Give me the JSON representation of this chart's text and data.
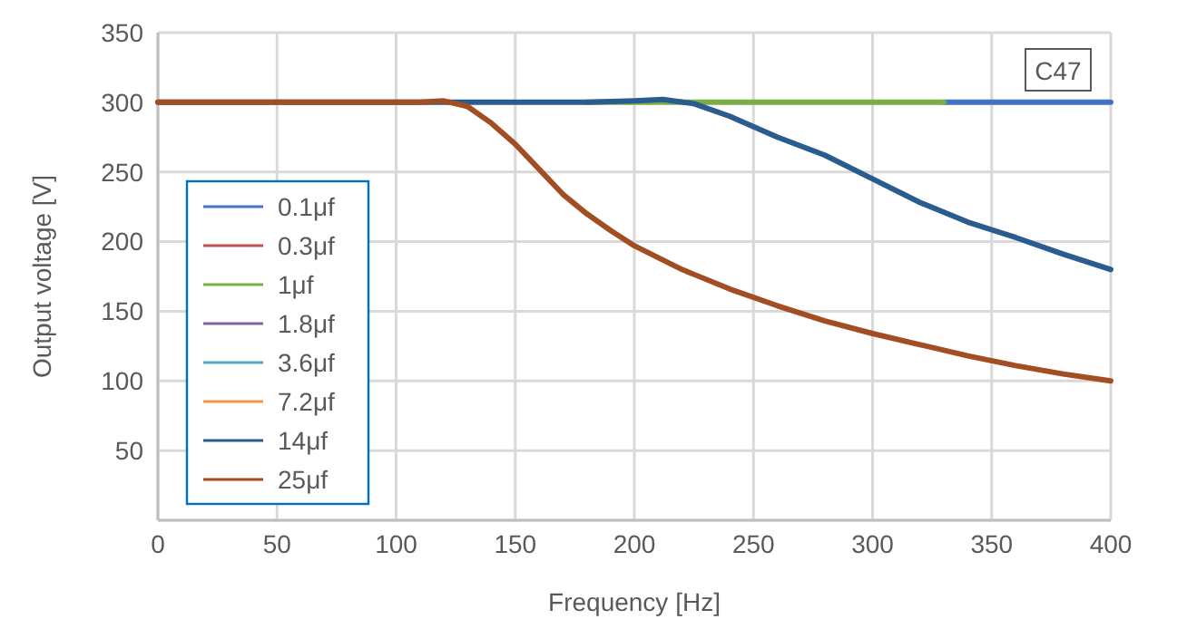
{
  "chart_data": {
    "type": "line",
    "xlabel": "Frequency [Hz]",
    "ylabel": "Output voltage [V]",
    "xlim": [
      0,
      400
    ],
    "xticks": [
      0,
      50,
      100,
      150,
      200,
      250,
      300,
      350,
      400
    ],
    "ylim": [
      0,
      350
    ],
    "yticks": [
      {
        "value": 0,
        "label": null
      },
      50,
      100,
      150,
      200,
      250,
      300,
      350
    ],
    "grid": true,
    "legend": "left",
    "marker": "none",
    "line_style": "solid",
    "annotations": [
      "C47"
    ],
    "series": [
      {
        "name": "0.1μf",
        "color": "#4472c4",
        "x": [
          330,
          400
        ],
        "values": [
          300,
          300
        ]
      },
      {
        "name": "0.3μf",
        "color": "#c0504d"
      },
      {
        "name": "1μf",
        "color": "#7aad47",
        "x": [
          180,
          330
        ],
        "values": [
          300,
          300
        ]
      },
      {
        "name": "1.8μf",
        "color": "#8064a2"
      },
      {
        "name": "3.6μf",
        "color": "#4bacc6"
      },
      {
        "name": "7.2μf",
        "color": "#f79646"
      },
      {
        "name": "14μf",
        "color": "#2b5c8f",
        "x": [
          0,
          180,
          200,
          212,
          225,
          240,
          260,
          280,
          300,
          320,
          340,
          360,
          380,
          400
        ],
        "values": [
          300,
          300,
          301,
          302,
          299,
          290,
          275,
          262,
          245,
          228,
          214,
          203,
          191,
          180
        ]
      },
      {
        "name": "25μf",
        "color": "#a24d22",
        "x": [
          0,
          110,
          120,
          130,
          140,
          150,
          160,
          170,
          180,
          190,
          200,
          220,
          240,
          260,
          280,
          300,
          320,
          340,
          360,
          380,
          400
        ],
        "values": [
          300,
          300,
          301,
          297,
          285,
          270,
          252,
          234,
          220,
          208,
          197,
          180,
          166,
          154,
          143,
          134,
          126,
          118,
          111,
          105,
          100
        ]
      }
    ]
  }
}
